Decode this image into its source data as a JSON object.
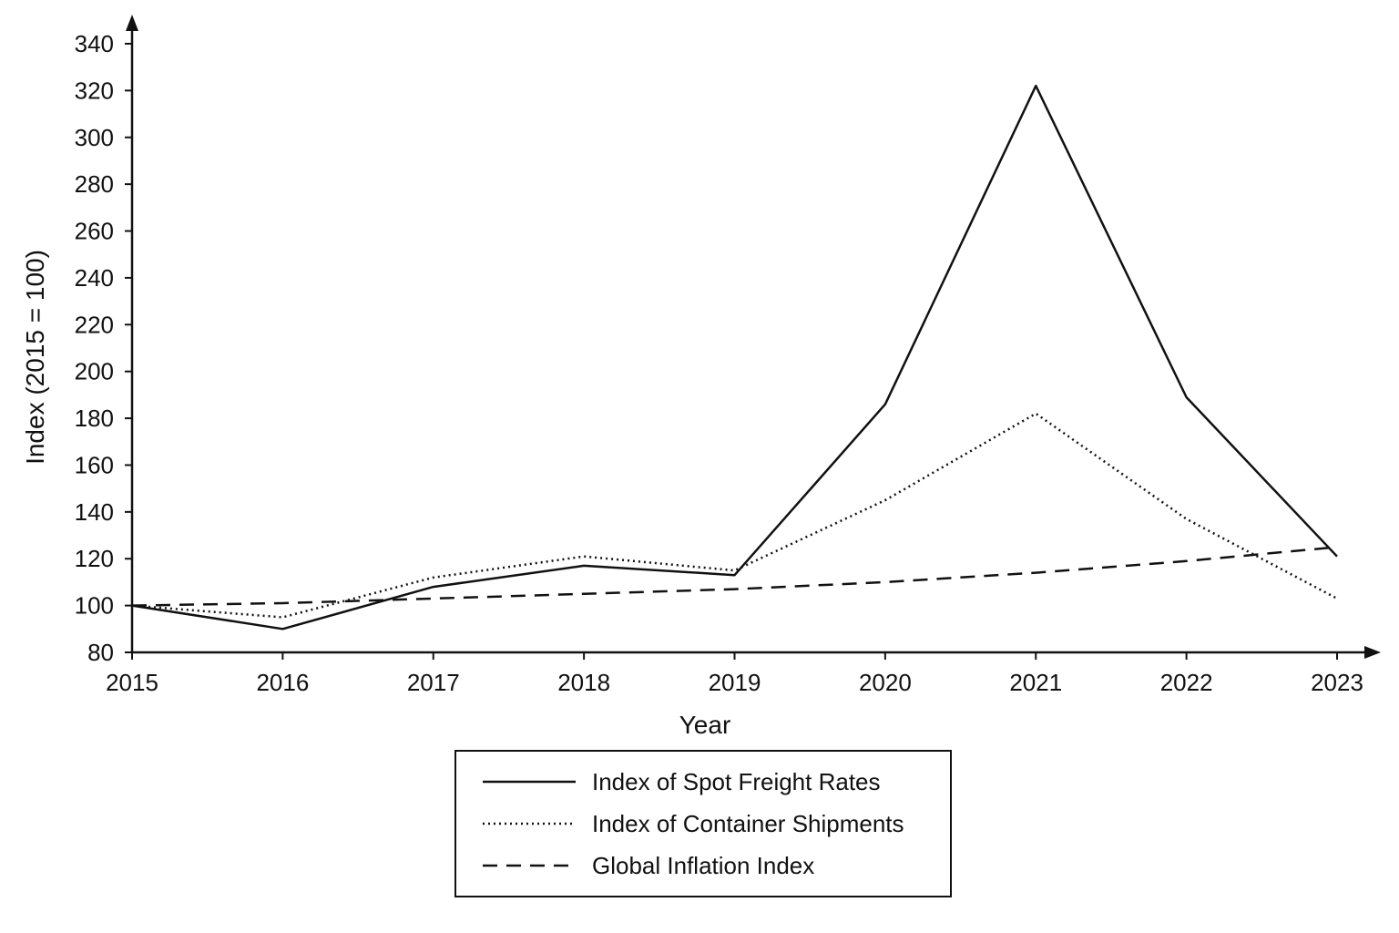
{
  "chart_data": {
    "type": "line",
    "title": "",
    "xlabel": "Year",
    "ylabel": "Index (2015 = 100)",
    "x": [
      2015,
      2016,
      2017,
      2018,
      2019,
      2020,
      2021,
      2022,
      2023
    ],
    "xtick_labels": [
      "2015",
      "2016",
      "2017",
      "2018",
      "2019",
      "2020",
      "2021",
      "2022",
      "2023"
    ],
    "ylim": [
      80,
      340
    ],
    "yticks": [
      80,
      100,
      120,
      140,
      160,
      180,
      200,
      220,
      240,
      260,
      280,
      300,
      320,
      340
    ],
    "grid": false,
    "legend_position": "bottom-center",
    "series": [
      {
        "name": "Index of Spot Freight Rates",
        "style": "solid",
        "color": "#111111",
        "values": [
          100,
          90,
          108,
          117,
          113,
          186,
          322,
          189,
          121
        ]
      },
      {
        "name": "Index of Container Shipments",
        "style": "dotted",
        "color": "#111111",
        "values": [
          100,
          95,
          112,
          121,
          115,
          145,
          182,
          137,
          103
        ]
      },
      {
        "name": "Global Inflation Index",
        "style": "dashed",
        "color": "#111111",
        "values": [
          100,
          101,
          103,
          105,
          107,
          110,
          114,
          119,
          125
        ]
      }
    ]
  }
}
